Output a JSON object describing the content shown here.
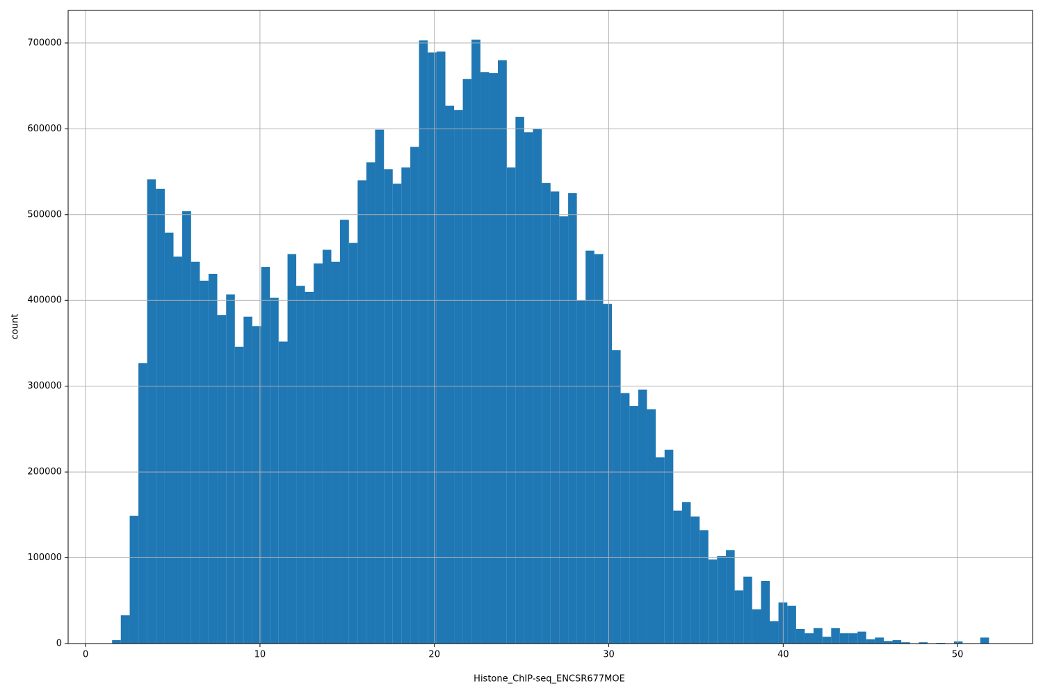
{
  "chart_data": {
    "type": "histogram",
    "xlabel": "Histone_ChIP-seq_ENCSR677MOE",
    "ylabel": "count",
    "color": "#1f77b4",
    "grid": true,
    "xlim": [
      -1.0,
      54.3
    ],
    "ylim": [
      0,
      738000
    ],
    "xticks": [
      0,
      10,
      20,
      30,
      40,
      50
    ],
    "yticks": [
      0,
      100000,
      200000,
      300000,
      400000,
      500000,
      600000,
      700000
    ],
    "bins": [
      1.52,
      2.02,
      2.53,
      3.03,
      3.53,
      4.03,
      4.54,
      5.04,
      5.54,
      6.05,
      6.55,
      7.05,
      7.55,
      8.06,
      8.56,
      9.06,
      9.56,
      10.07,
      10.57,
      11.07,
      11.58,
      12.08,
      12.58,
      13.08,
      13.59,
      14.09,
      14.59,
      15.1,
      15.6,
      16.1,
      16.6,
      17.11,
      17.61,
      18.11,
      18.62,
      19.12,
      19.62,
      20.12,
      20.63,
      21.13,
      21.63,
      22.13,
      22.64,
      23.14,
      23.64,
      24.15,
      24.65,
      25.15,
      25.65,
      26.16,
      26.66,
      27.16,
      27.67,
      28.17,
      28.67,
      29.17,
      29.68,
      30.18,
      30.68,
      31.19,
      31.69,
      32.19,
      32.69,
      33.2,
      33.7,
      34.2,
      34.7,
      35.21,
      35.71,
      36.21,
      36.72,
      37.22,
      37.72,
      38.22,
      38.73,
      39.23,
      39.73,
      40.24,
      40.74,
      41.24,
      41.74,
      42.25,
      42.75,
      43.25,
      43.76,
      44.26,
      44.76,
      45.26,
      45.77,
      46.27,
      46.77,
      47.27,
      47.78,
      48.28,
      48.78,
      49.29,
      49.79,
      50.29,
      50.79,
      51.3,
      51.8
    ],
    "values": [
      4000,
      33000,
      149000,
      327000,
      541000,
      530000,
      479000,
      451000,
      504000,
      445000,
      423000,
      431000,
      383000,
      407000,
      346000,
      381000,
      370000,
      439000,
      403000,
      352000,
      454000,
      417000,
      410000,
      443000,
      459000,
      445000,
      494000,
      467000,
      540000,
      561000,
      599000,
      553000,
      536000,
      555000,
      579000,
      703000,
      689000,
      690000,
      627000,
      622000,
      658000,
      704000,
      666000,
      665000,
      680000,
      555000,
      614000,
      596000,
      600000,
      537000,
      527000,
      498000,
      525000,
      400000,
      458000,
      454000,
      396000,
      342000,
      292000,
      277000,
      296000,
      273000,
      217000,
      226000,
      155000,
      165000,
      148000,
      132000,
      98000,
      102000,
      109000,
      62000,
      78000,
      40000,
      73000,
      26000,
      48000,
      44000,
      17000,
      12000,
      18000,
      8000,
      18000,
      12000,
      12000,
      14000,
      5000,
      7000,
      3000,
      4000,
      1500,
      0,
      1500,
      0,
      800,
      0,
      2500,
      0,
      0,
      7000
    ]
  }
}
